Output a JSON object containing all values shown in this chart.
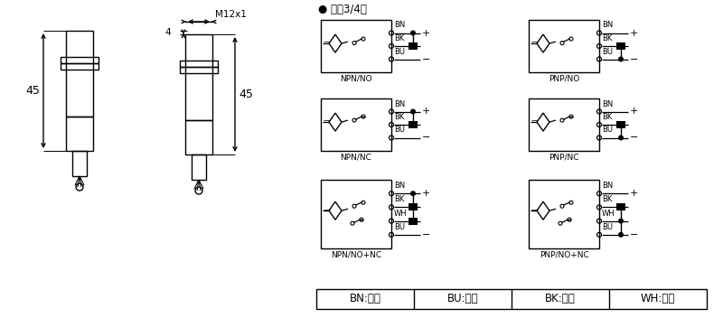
{
  "bg_color": "#ffffff",
  "line_color": "#000000",
  "title_bullet": "● 直涁3/4线",
  "npn_no_label": "NPN/NO",
  "npn_nc_label": "NPN/NC",
  "npn_nonc_label": "NPN/NO+NC",
  "pnp_no_label": "PNP/NO",
  "pnp_nc_label": "PNP/NC",
  "pnp_nonc_label": "PNP/NO+NC",
  "legend_bn": "BN:棕色",
  "legend_bu": "BU:兰色",
  "legend_bk": "BK:黑色",
  "legend_wh": "WH:白色",
  "dim_m12": "M12x1",
  "dim_45a": "45",
  "dim_45b": "45",
  "dim_4": "4",
  "fig_w": 8.0,
  "fig_h": 3.52,
  "dpi": 100
}
